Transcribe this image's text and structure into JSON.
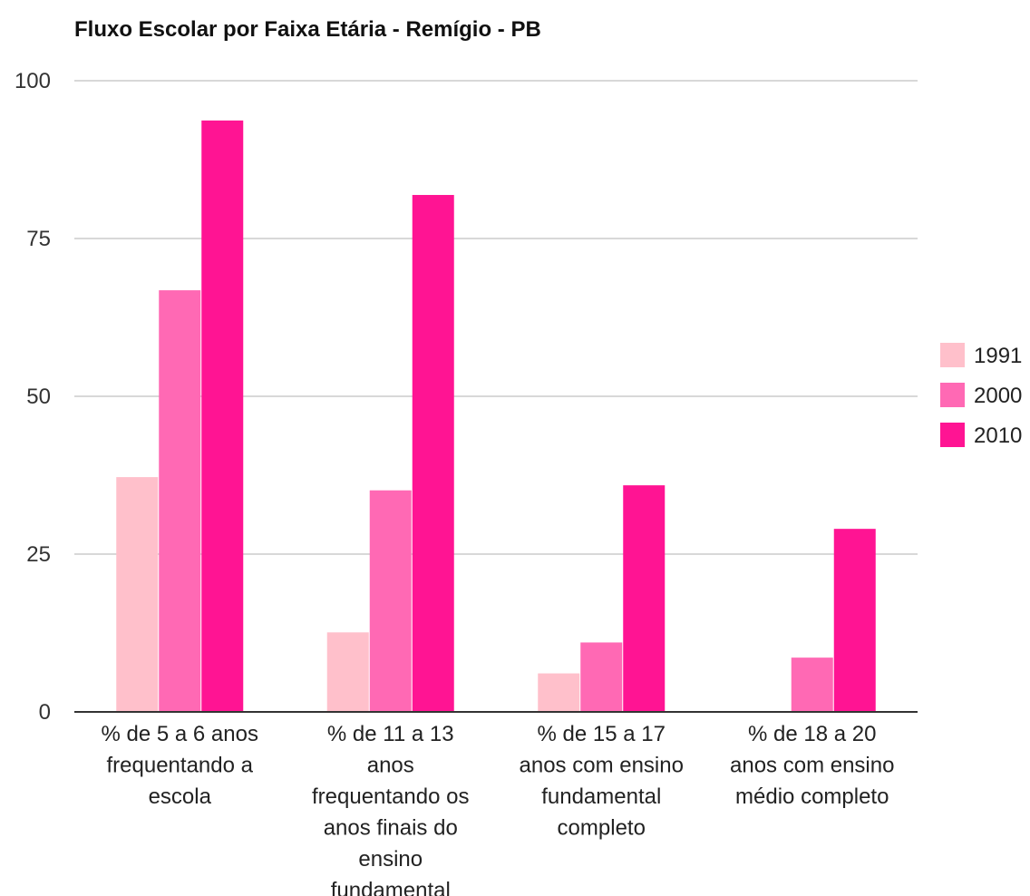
{
  "chart_data": {
    "type": "bar",
    "title": "Fluxo Escolar por Faixa Etária - Remígio - PB",
    "xlabel": "",
    "ylabel": "",
    "ylim": [
      0,
      100
    ],
    "yticks": [
      0,
      25,
      50,
      75,
      100
    ],
    "grid": true,
    "legend_position": "right",
    "categories": [
      [
        "% de 5 a 6 anos",
        "frequentando a",
        "escola"
      ],
      [
        "% de 11 a 13",
        "anos",
        "frequentando os",
        "anos finais do",
        "ensino",
        "fundamental"
      ],
      [
        "% de 15 a 17",
        "anos com ensino",
        "fundamental",
        "completo"
      ],
      [
        "% de 18 a 20",
        "anos com ensino",
        "médio completo"
      ]
    ],
    "series": [
      {
        "name": "1991",
        "color": "#ffc0cb",
        "values": [
          37.2,
          12.6,
          6.1,
          0
        ]
      },
      {
        "name": "2000",
        "color": "#ff69b4",
        "values": [
          66.8,
          35.1,
          11.0,
          8.6
        ]
      },
      {
        "name": "2010",
        "color": "#ff1493",
        "values": [
          93.7,
          81.9,
          35.9,
          29.0
        ]
      }
    ]
  }
}
